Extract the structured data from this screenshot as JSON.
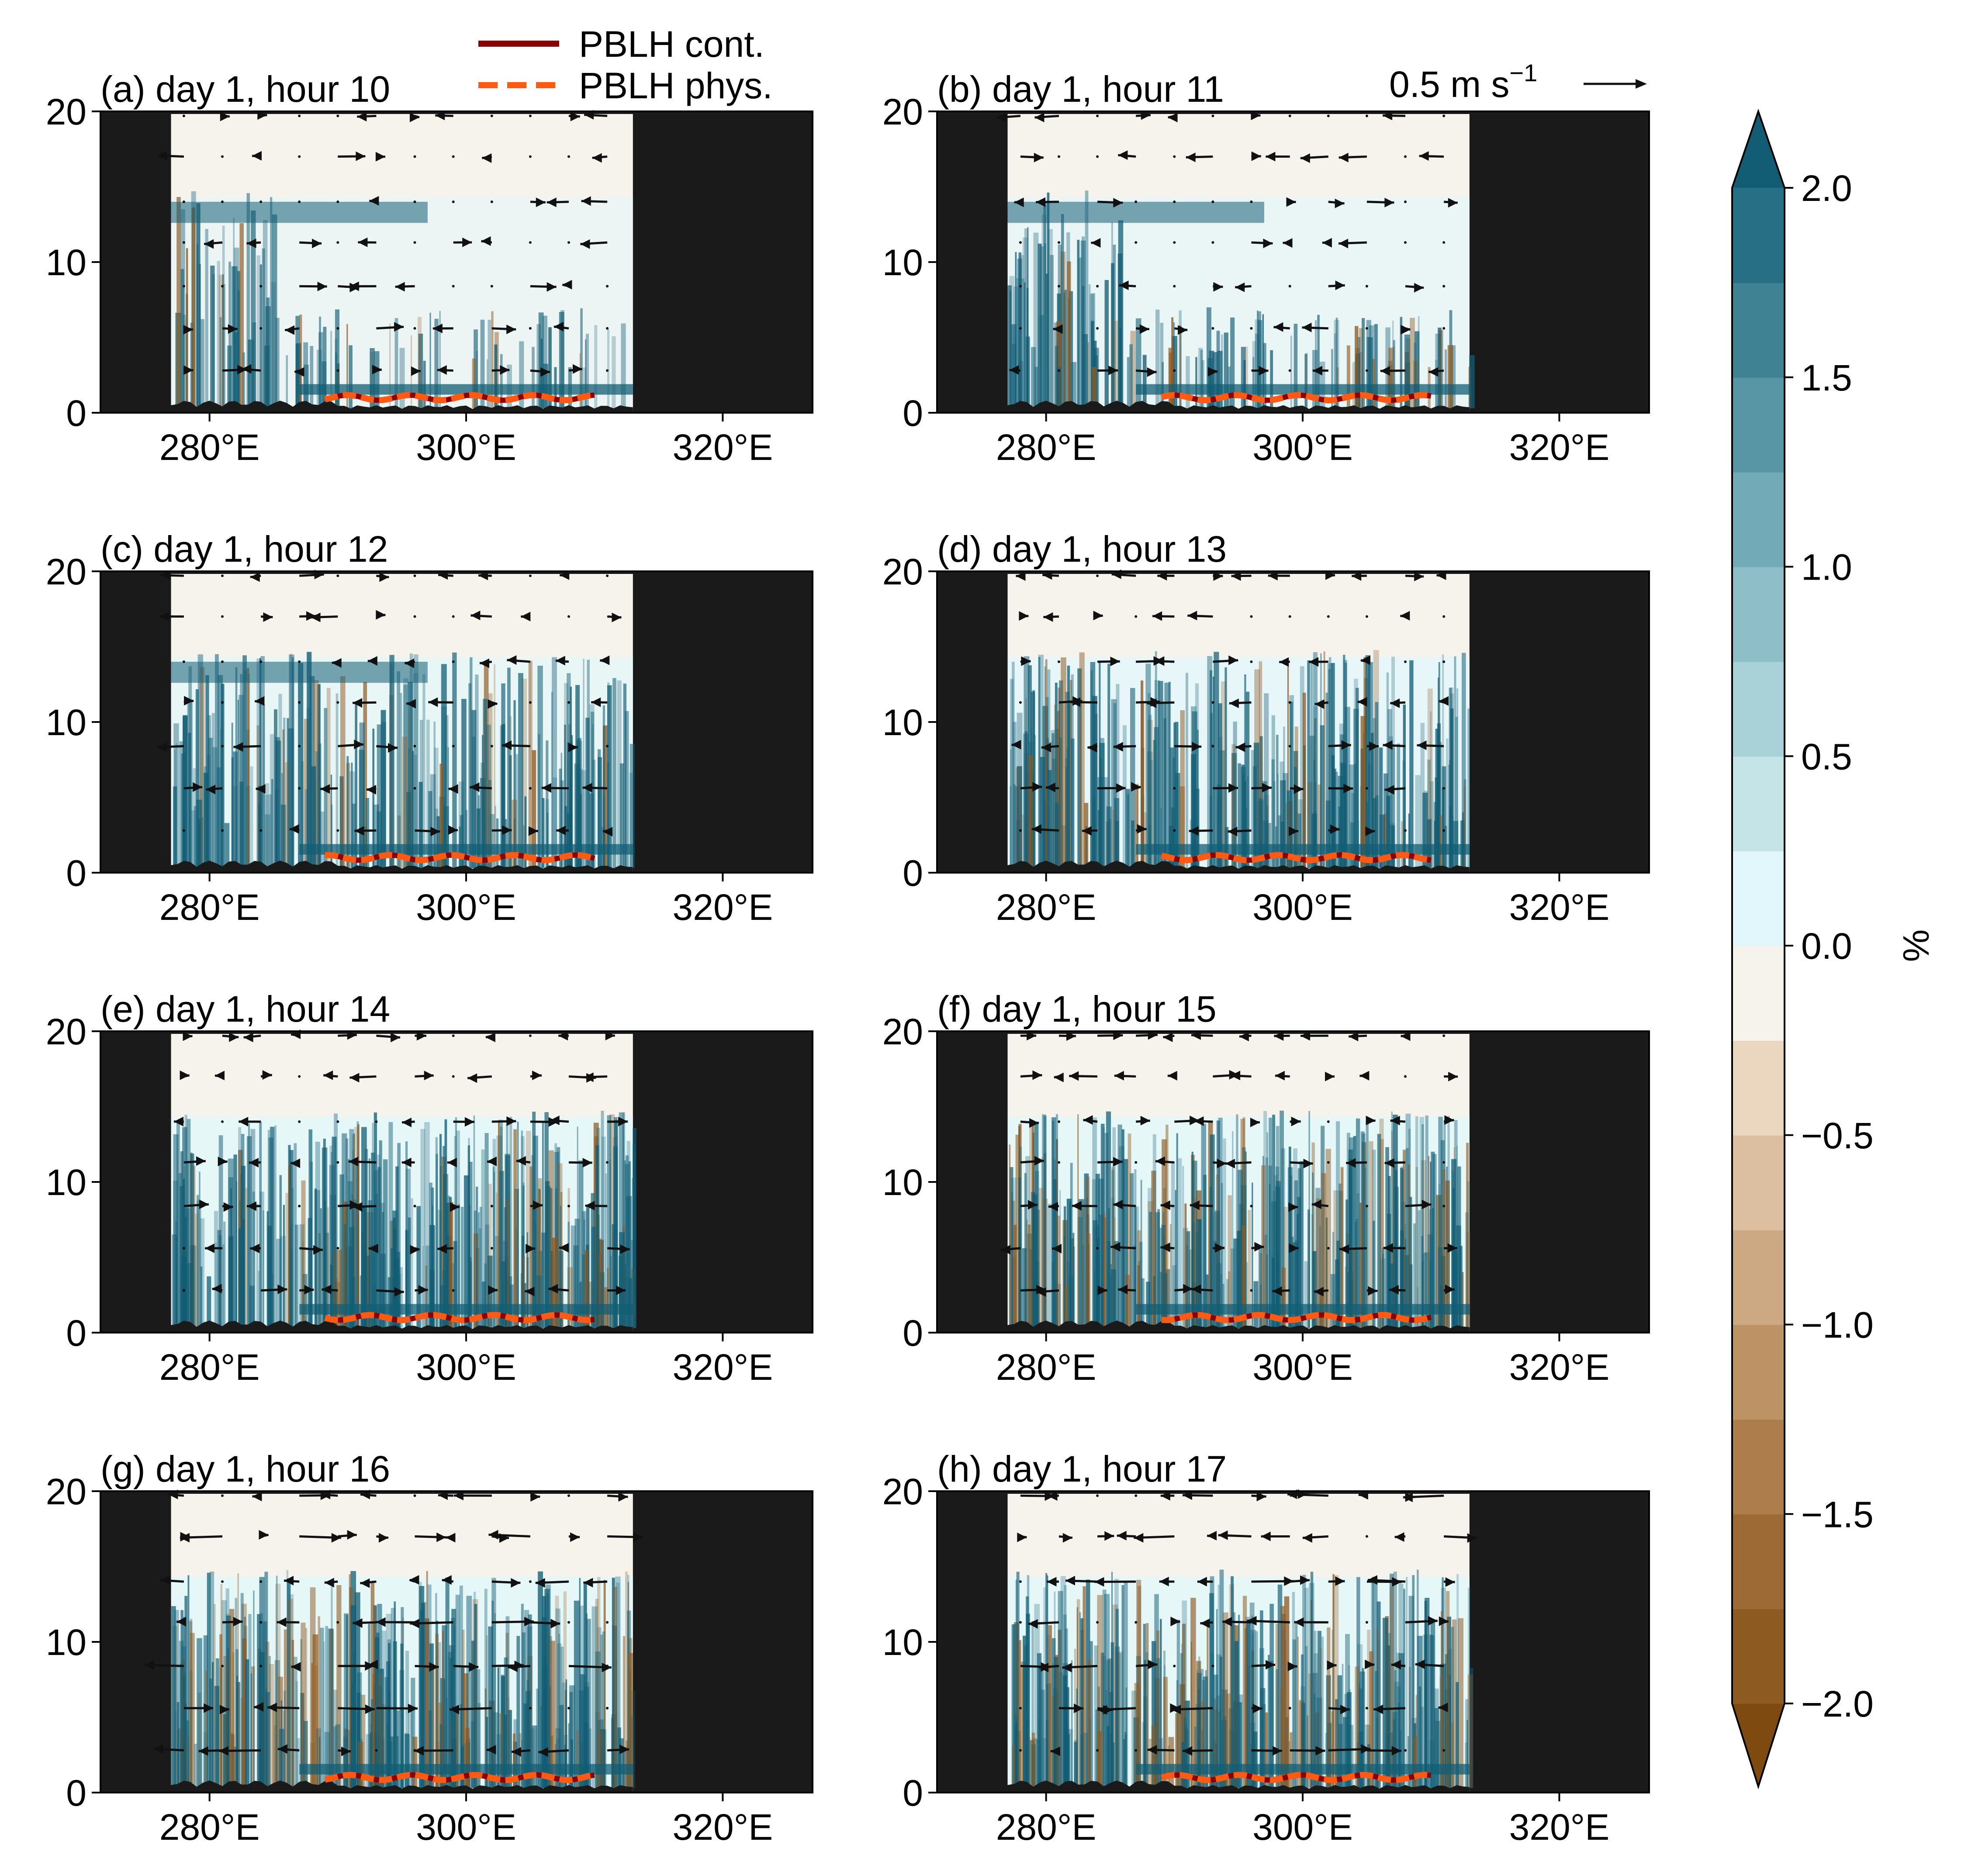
{
  "chart_data": {
    "type": "heatmap",
    "x_axis": {
      "ticks": [
        280,
        300,
        320
      ],
      "tick_labels": [
        "280°E",
        "300°E",
        "320°E"
      ],
      "xlim": [
        271.5,
        327
      ]
    },
    "y_axis": {
      "ticks": [
        0,
        10,
        20
      ],
      "tick_labels": [
        "0",
        "10",
        "20"
      ],
      "ylim": [
        0,
        20
      ]
    },
    "data_extent_lon": [
      277,
      313
    ],
    "panels": [
      {
        "id": "a",
        "title": "(a) day 1, hour 10",
        "hour": 10
      },
      {
        "id": "b",
        "title": "(b) day 1, hour 11",
        "hour": 11
      },
      {
        "id": "c",
        "title": "(c) day 1, hour 12",
        "hour": 12
      },
      {
        "id": "d",
        "title": "(d) day 1, hour 13",
        "hour": 13
      },
      {
        "id": "e",
        "title": "(e) day 1, hour 14",
        "hour": 14
      },
      {
        "id": "f",
        "title": "(f) day 1, hour 15",
        "hour": 15
      },
      {
        "id": "g",
        "title": "(g) day 1, hour 16",
        "hour": 16
      },
      {
        "id": "h",
        "title": "(h) day 1, hour 17",
        "hour": 17
      }
    ],
    "legend": [
      {
        "label": "PBLH cont.",
        "color": "#8b0000",
        "style": "solid"
      },
      {
        "label": "PBLH phys.",
        "color": "#ff5a14",
        "style": "dashed"
      }
    ],
    "quiver_key": {
      "label": "0.5 m s",
      "exponent": "−1",
      "value": 0.5
    },
    "pblh": {
      "lon_range": [
        289,
        310
      ],
      "height_km": 1.0
    },
    "colorbar": {
      "label": "%",
      "range": [
        -2.0,
        2.0
      ],
      "ticks": [
        2.0,
        1.5,
        1.0,
        0.5,
        0.0,
        -0.5,
        -1.0,
        -1.5,
        -2.0
      ],
      "tick_labels": [
        "2.0",
        "1.5",
        "1.0",
        "0.5",
        "0.0",
        "−0.5",
        "−1.0",
        "−1.5",
        "−2.0"
      ],
      "extend": "both",
      "colors": [
        "#7e4a0f",
        "#8d5a22",
        "#9d6a35",
        "#ad7d4b",
        "#bd9366",
        "#cca883",
        "#dcbea1",
        "#ebd6c0",
        "#f6f2ec",
        "#e2f7fb",
        "#c4e4e8",
        "#a9d1d8",
        "#8ebec8",
        "#72aab7",
        "#5896a5",
        "#3f8294",
        "#276f84",
        "#125d74"
      ]
    },
    "colors": {
      "mask": "#1a1a1a",
      "background": "#f6f2ec",
      "teal": "#125d74",
      "brown": "#8d5a22"
    }
  }
}
